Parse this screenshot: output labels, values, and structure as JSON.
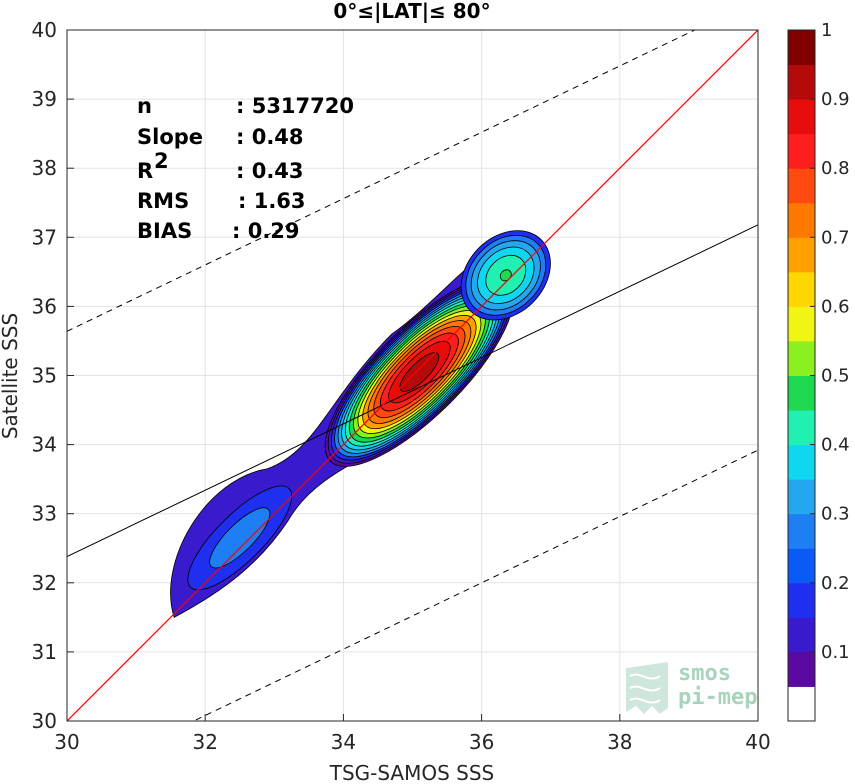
{
  "chart_data": {
    "type": "heatmap",
    "title": "0°≤|LAT|≤ 80°",
    "xlabel": "TSG-SAMOS SSS",
    "ylabel": "Satellite SSS",
    "xlim": [
      30,
      40
    ],
    "ylim": [
      30,
      40
    ],
    "xticks": [
      "30",
      "32",
      "34",
      "36",
      "38",
      "40"
    ],
    "yticks": [
      "30",
      "31",
      "32",
      "33",
      "34",
      "35",
      "36",
      "37",
      "38",
      "39",
      "40"
    ],
    "grid": true,
    "stats": [
      {
        "label": "n",
        "value": ": 5317720"
      },
      {
        "label": "Slope",
        "value": ": 0.48"
      },
      {
        "label": "R",
        "sup": "2",
        "value": ": 0.43"
      },
      {
        "label": "RMS",
        "value": ": 1.63"
      },
      {
        "label": "BIAS",
        "value": ": 0.29"
      }
    ],
    "one_to_one_line": {
      "color": "#ff0000",
      "slope": 1,
      "intercept": 0
    },
    "regression_line": {
      "color": "#000000",
      "slope": 0.48,
      "intercept": 17.98
    },
    "bound_lines": {
      "style": "dashed",
      "offsets": [
        -3.26,
        3.26
      ],
      "slope": 0.48,
      "intercept": 17.98
    },
    "density_peaks": [
      {
        "x": 35.1,
        "y": 35.05,
        "value": 1.0
      },
      {
        "x": 36.35,
        "y": 36.45,
        "value": 0.48
      },
      {
        "x": 32.5,
        "y": 32.65,
        "value": 0.27
      }
    ],
    "colorbar": {
      "range": [
        0,
        1
      ],
      "ticks": [
        "0.1",
        "0.2",
        "0.3",
        "0.4",
        "0.5",
        "0.6",
        "0.7",
        "0.8",
        "0.9",
        "1"
      ],
      "colors": [
        "#ffffff",
        "#5a0aa0",
        "#3a1acd",
        "#1e2ff0",
        "#0a5af5",
        "#1e7ff5",
        "#23a8f0",
        "#10d7f0",
        "#20f0b0",
        "#1ed850",
        "#8cf020",
        "#f0f514",
        "#ffd700",
        "#ffa000",
        "#ff7800",
        "#ff4a10",
        "#ff1e1e",
        "#e60d0d",
        "#b40a0a",
        "#820000"
      ]
    }
  },
  "logo": {
    "line1": "smos",
    "line2": "pi-mep"
  }
}
